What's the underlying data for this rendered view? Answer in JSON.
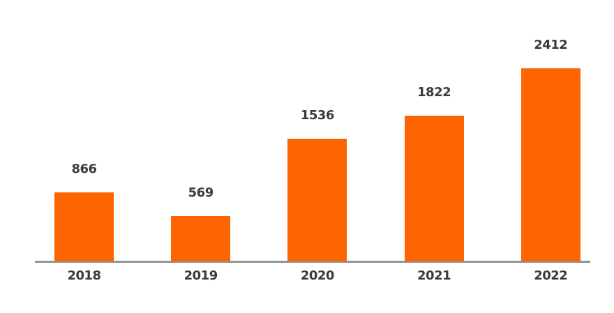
{
  "chart_data": {
    "type": "bar",
    "title": "",
    "xlabel": "",
    "ylabel": "",
    "categories": [
      "2018",
      "2019",
      "2020",
      "2021",
      "2022"
    ],
    "values": [
      866,
      569,
      1536,
      1822,
      2412
    ],
    "data_labels": [
      "866",
      "569",
      "1536",
      "1822",
      "2412"
    ],
    "ylim": [
      0,
      2412
    ],
    "grid": false,
    "legend": "none",
    "colors": {
      "bar": "#FC6500",
      "label_text": "#3B3B3F",
      "axis_line": "#949494",
      "background": "#FFFFFF"
    }
  }
}
